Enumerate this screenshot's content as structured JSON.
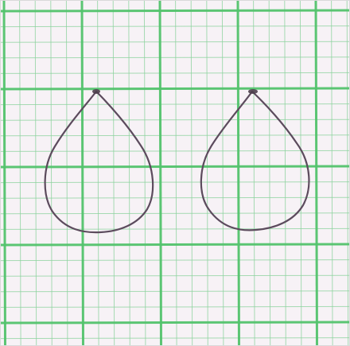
{
  "photo": {
    "subject": "",
    "paper_color": "#f7f2f6",
    "grid_minor_color": "#8ad29c",
    "grid_major_color": "#53c36d",
    "wire_color": "#5c4b5d",
    "items_shown": 2
  }
}
